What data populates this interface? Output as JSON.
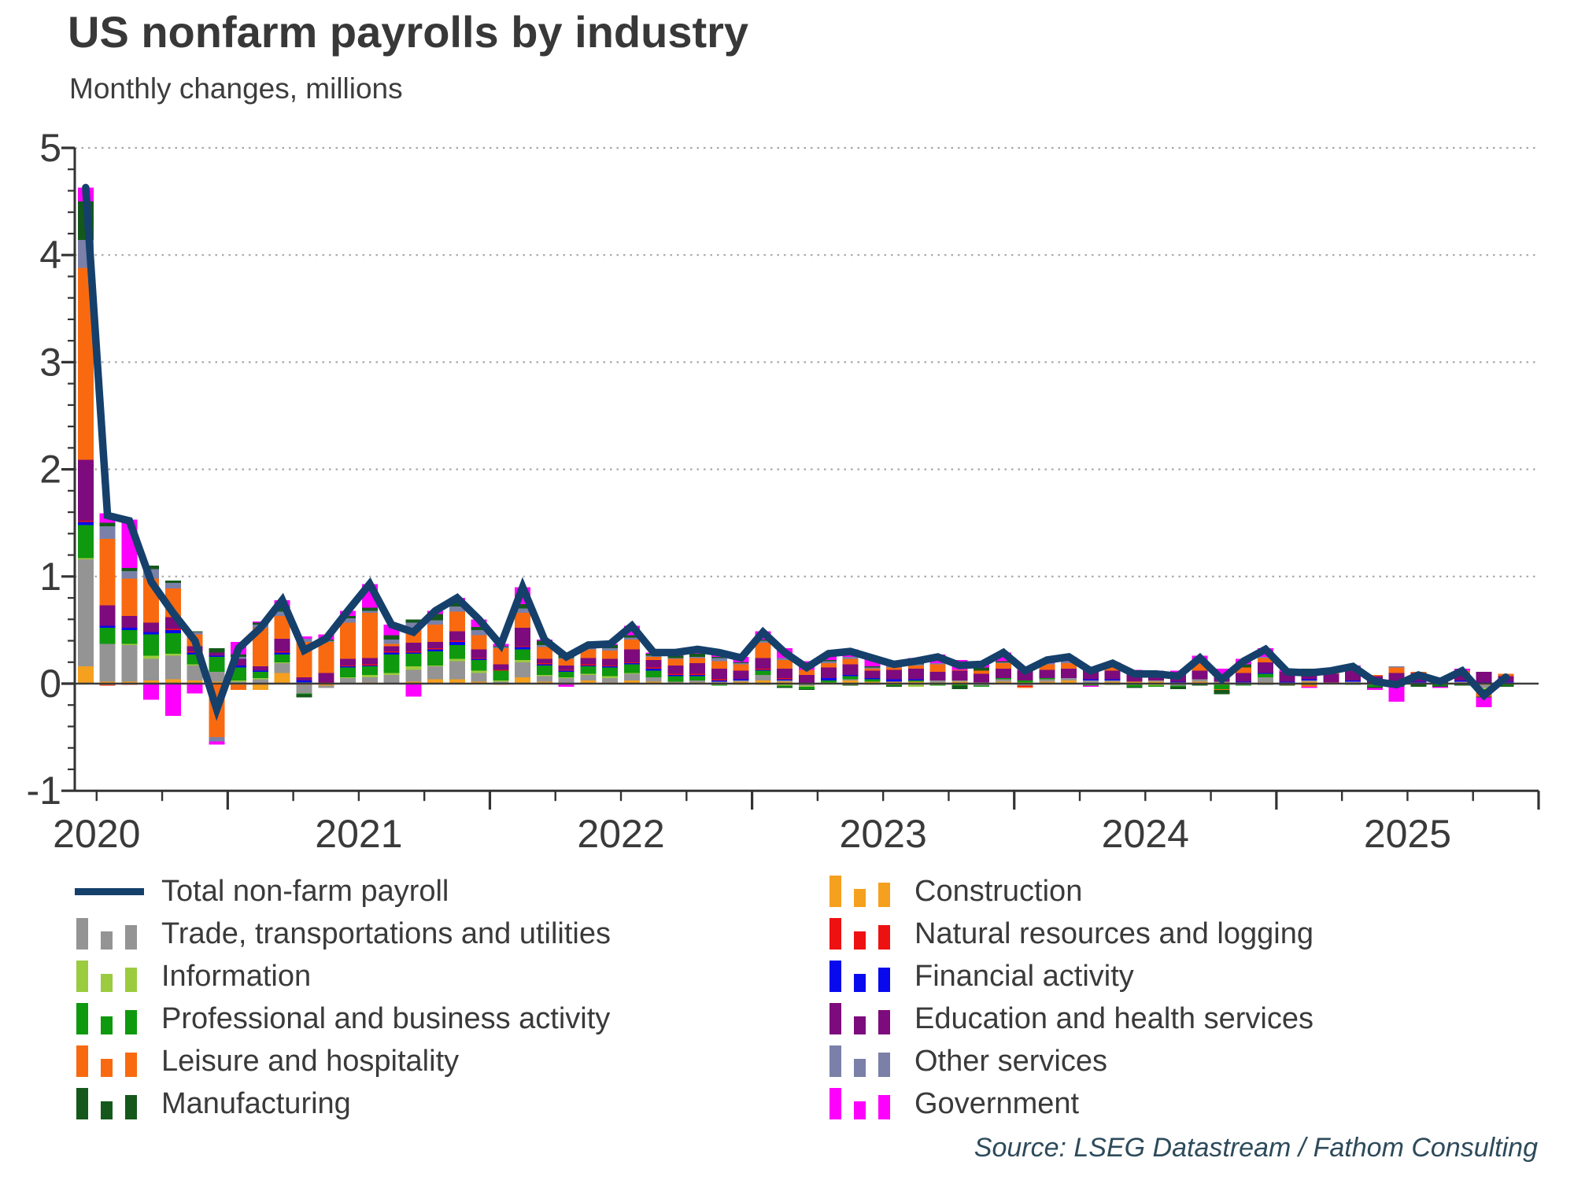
{
  "header": {
    "title": "US nonfarm payrolls by industry",
    "subtitle": "Monthly changes, millions"
  },
  "source_note": "Source: LSEG Datastream / Fathom Consulting",
  "colors": {
    "total_line": "#15406B",
    "trade": "#949494",
    "information": "#9BCB3F",
    "professional": "#0F990F",
    "leisure": "#F96A10",
    "manufacturing": "#14591B",
    "construction": "#F5A01E",
    "natural_resources": "#EE1111",
    "financial": "#0909EE",
    "education": "#7D0B7D",
    "other_services": "#7A80A8",
    "government": "#FD00FE",
    "axis": "#333333",
    "zero_line": "#3c3c3c",
    "gridline": "#a8a8a8",
    "text": "#3a3a3a"
  },
  "legend": {
    "left": [
      {
        "key": "total_line",
        "swatch": "line",
        "label": "Total non-farm payroll"
      },
      {
        "key": "trade",
        "swatch": "bars",
        "label": "Trade, transportations and utilities"
      },
      {
        "key": "information",
        "swatch": "bars",
        "label": "Information"
      },
      {
        "key": "professional",
        "swatch": "bars",
        "label": "Professional and business activity"
      },
      {
        "key": "leisure",
        "swatch": "bars",
        "label": "Leisure and hospitality"
      },
      {
        "key": "manufacturing",
        "swatch": "bars",
        "label": "Manufacturing"
      }
    ],
    "right": [
      {
        "key": "construction",
        "swatch": "bars",
        "label": "Construction"
      },
      {
        "key": "natural_resources",
        "swatch": "bars",
        "label": "Natural resources and logging"
      },
      {
        "key": "financial",
        "swatch": "bars",
        "label": "Financial activity"
      },
      {
        "key": "education",
        "swatch": "bars",
        "label": "Education and health services"
      },
      {
        "key": "other_services",
        "swatch": "bars",
        "label": "Other services"
      },
      {
        "key": "government",
        "swatch": "bars",
        "label": "Government"
      }
    ]
  },
  "chart_data": {
    "type": "bar",
    "stacked": true,
    "overlay_line": "Total non-farm payroll",
    "title": "US nonfarm payrolls by industry",
    "subtitle": "Monthly changes, millions",
    "ylabel": "Monthly changes, millions",
    "ylim": [
      -1,
      5
    ],
    "ytick_labels": [
      "-1",
      "0",
      "1",
      "2",
      "3",
      "4",
      "5"
    ],
    "ytick_values": [
      -1,
      0,
      1,
      2,
      3,
      4,
      5
    ],
    "y_minor_step": 0.2,
    "grid": "dotted horizontal at integer values 1..5",
    "legend_position": "bottom",
    "x_axis_years": [
      "2020",
      "2021",
      "2022",
      "2023",
      "2024",
      "2025"
    ],
    "x_start_month": "2020-06",
    "x_end_month": "2025-11",
    "x_axis_extends_to": "2025-12",
    "months": [
      "2020-06",
      "2020-07",
      "2020-08",
      "2020-09",
      "2020-10",
      "2020-11",
      "2020-12",
      "2021-01",
      "2021-02",
      "2021-03",
      "2021-04",
      "2021-05",
      "2021-06",
      "2021-07",
      "2021-08",
      "2021-09",
      "2021-10",
      "2021-11",
      "2021-12",
      "2022-01",
      "2022-02",
      "2022-03",
      "2022-04",
      "2022-05",
      "2022-06",
      "2022-07",
      "2022-08",
      "2022-09",
      "2022-10",
      "2022-11",
      "2022-12",
      "2023-01",
      "2023-02",
      "2023-03",
      "2023-04",
      "2023-05",
      "2023-06",
      "2023-07",
      "2023-08",
      "2023-09",
      "2023-10",
      "2023-11",
      "2023-12",
      "2024-01",
      "2024-02",
      "2024-03",
      "2024-04",
      "2024-05",
      "2024-06",
      "2024-07",
      "2024-08",
      "2024-09",
      "2024-10",
      "2024-11",
      "2024-12",
      "2025-01",
      "2025-02",
      "2025-03",
      "2025-04",
      "2025-05",
      "2025-06",
      "2025-07",
      "2025-08",
      "2025-09",
      "2025-10",
      "2025-11"
    ],
    "series": [
      {
        "name": "Construction",
        "color_key": "construction",
        "values": [
          0.16,
          0.02,
          0.02,
          0.03,
          0.04,
          0.03,
          0.02,
          -0.01,
          -0.06,
          0.1,
          -0.01,
          -0.02,
          0.0,
          0.01,
          0.0,
          0.02,
          0.04,
          0.04,
          0.02,
          -0.01,
          0.06,
          0.02,
          0.0,
          0.03,
          0.01,
          0.03,
          0.02,
          0.01,
          0.01,
          0.01,
          0.02,
          0.03,
          0.02,
          0.0,
          0.01,
          0.03,
          0.02,
          0.02,
          0.02,
          0.01,
          0.02,
          0.0,
          0.02,
          0.01,
          0.02,
          0.03,
          0.0,
          0.02,
          0.02,
          0.02,
          0.01,
          0.02,
          0.01,
          0.01,
          0.01,
          0.0,
          0.02,
          0.01,
          0.01,
          0.0,
          0.01,
          0.0,
          0.0,
          0.01,
          -0.01,
          0.0
        ]
      },
      {
        "name": "Trade, transportations and utilities",
        "color_key": "trade",
        "values": [
          1.0,
          0.35,
          0.34,
          0.2,
          0.22,
          0.14,
          0.09,
          0.02,
          0.04,
          0.09,
          -0.08,
          -0.02,
          0.05,
          0.05,
          0.08,
          0.11,
          0.12,
          0.17,
          0.08,
          0.02,
          0.14,
          0.05,
          0.05,
          0.05,
          0.04,
          0.06,
          0.04,
          0.01,
          0.02,
          0.01,
          0.01,
          0.05,
          0.01,
          -0.02,
          0.0,
          0.01,
          -0.01,
          0.0,
          -0.01,
          0.02,
          0.01,
          -0.02,
          0.02,
          -0.02,
          0.02,
          0.02,
          0.03,
          0.01,
          -0.01,
          0.01,
          -0.02,
          0.02,
          0.01,
          -0.01,
          0.05,
          0.01,
          0.01,
          0.0,
          0.01,
          -0.01,
          0.01,
          0.01,
          0.0,
          0.01,
          -0.03,
          0.01
        ]
      },
      {
        "name": "Information",
        "color_key": "information",
        "values": [
          0.01,
          -0.01,
          0.01,
          0.03,
          0.02,
          0.01,
          0.0,
          0.01,
          0.01,
          0.01,
          0.01,
          0.0,
          0.01,
          0.02,
          0.02,
          0.03,
          0.01,
          0.02,
          0.02,
          0.01,
          0.02,
          0.01,
          0.01,
          0.01,
          0.02,
          0.01,
          0.0,
          0.0,
          0.0,
          -0.01,
          -0.01,
          -0.01,
          -0.02,
          -0.01,
          0.0,
          -0.01,
          0.0,
          -0.01,
          -0.02,
          -0.01,
          -0.01,
          0.01,
          0.0,
          0.0,
          0.0,
          0.0,
          -0.01,
          0.0,
          0.0,
          -0.02,
          0.0,
          0.0,
          -0.01,
          0.0,
          0.0,
          0.0,
          0.0,
          0.0,
          0.0,
          0.0,
          0.0,
          0.0,
          0.0,
          0.0,
          -0.01,
          0.0
        ]
      },
      {
        "name": "Professional and business activity",
        "color_key": "professional",
        "values": [
          0.31,
          0.15,
          0.13,
          0.2,
          0.19,
          0.09,
          0.14,
          0.12,
          0.06,
          0.07,
          -0.01,
          0.0,
          0.09,
          0.08,
          0.17,
          0.12,
          0.13,
          0.13,
          0.1,
          0.09,
          0.1,
          0.09,
          0.05,
          0.07,
          0.08,
          0.08,
          0.06,
          0.05,
          0.04,
          -0.01,
          0.0,
          0.04,
          -0.01,
          -0.02,
          0.02,
          0.03,
          0.02,
          -0.01,
          0.01,
          -0.01,
          -0.01,
          -0.01,
          0.01,
          0.02,
          0.01,
          0.0,
          -0.01,
          -0.01,
          -0.02,
          -0.01,
          -0.01,
          -0.01,
          -0.04,
          -0.01,
          0.03,
          0.0,
          -0.01,
          0.0,
          -0.01,
          -0.02,
          -0.02,
          -0.01,
          -0.02,
          -0.01,
          -0.03,
          -0.02
        ]
      },
      {
        "name": "Financial activity",
        "color_key": "financial",
        "values": [
          0.03,
          0.02,
          0.02,
          0.02,
          0.03,
          0.02,
          0.01,
          0.02,
          0.01,
          0.02,
          0.02,
          0.0,
          0.01,
          0.01,
          0.02,
          0.01,
          0.02,
          0.03,
          0.01,
          0.0,
          0.02,
          0.01,
          0.01,
          0.01,
          0.01,
          0.01,
          0.02,
          0.01,
          0.01,
          0.01,
          0.01,
          0.01,
          0.01,
          0.0,
          0.02,
          0.01,
          0.01,
          0.02,
          0.01,
          0.0,
          0.0,
          0.0,
          0.0,
          0.0,
          0.0,
          0.0,
          0.01,
          0.01,
          0.0,
          0.0,
          0.01,
          0.0,
          0.0,
          0.01,
          0.01,
          0.01,
          0.01,
          0.0,
          0.01,
          0.0,
          0.0,
          0.01,
          0.0,
          0.01,
          0.01,
          0.01
        ]
      },
      {
        "name": "Natural resources and logging",
        "color_key": "natural_resources",
        "values": [
          0.01,
          -0.01,
          -0.01,
          0.0,
          0.01,
          0.01,
          0.0,
          0.0,
          0.0,
          0.01,
          0.0,
          0.01,
          0.01,
          0.01,
          0.01,
          0.01,
          0.01,
          0.01,
          0.01,
          0.01,
          0.01,
          0.01,
          0.01,
          0.01,
          0.01,
          0.01,
          0.01,
          0.01,
          0.01,
          0.01,
          0.0,
          0.01,
          0.01,
          0.0,
          0.0,
          0.0,
          0.0,
          0.0,
          0.0,
          0.0,
          0.0,
          0.0,
          0.0,
          -0.01,
          0.0,
          0.0,
          0.0,
          0.0,
          0.0,
          0.0,
          0.0,
          0.0,
          0.0,
          0.0,
          0.0,
          0.0,
          0.0,
          0.0,
          0.0,
          0.0,
          0.0,
          0.0,
          0.0,
          0.0,
          0.0,
          0.0
        ]
      },
      {
        "name": "Education and health services",
        "color_key": "education",
        "values": [
          0.57,
          0.19,
          0.11,
          0.09,
          0.11,
          0.05,
          0.03,
          0.06,
          0.04,
          0.12,
          0.03,
          0.09,
          0.06,
          0.06,
          0.05,
          0.08,
          0.06,
          0.09,
          0.08,
          0.05,
          0.17,
          0.04,
          0.04,
          0.06,
          0.06,
          0.12,
          0.07,
          0.08,
          0.1,
          0.1,
          0.08,
          0.1,
          0.09,
          0.08,
          0.1,
          0.1,
          0.07,
          0.09,
          0.1,
          0.08,
          0.09,
          0.08,
          0.09,
          0.09,
          0.08,
          0.09,
          0.09,
          0.08,
          0.08,
          0.06,
          0.07,
          0.08,
          0.06,
          0.08,
          0.1,
          0.09,
          0.08,
          0.08,
          0.09,
          0.07,
          0.08,
          0.08,
          0.05,
          0.06,
          0.1,
          0.05
        ]
      },
      {
        "name": "Leisure and hospitality",
        "color_key": "leisure",
        "values": [
          1.79,
          0.62,
          0.35,
          0.41,
          0.27,
          0.11,
          -0.5,
          -0.05,
          0.36,
          0.21,
          0.33,
          0.29,
          0.34,
          0.42,
          0.02,
          0.12,
          0.16,
          0.18,
          0.13,
          0.15,
          0.14,
          0.11,
          0.06,
          0.08,
          0.08,
          0.09,
          0.03,
          0.06,
          0.05,
          0.07,
          0.06,
          0.14,
          0.08,
          0.05,
          0.04,
          0.05,
          0.02,
          0.02,
          0.03,
          0.07,
          0.01,
          0.03,
          0.05,
          -0.01,
          0.05,
          0.05,
          0.01,
          0.04,
          0.01,
          0.02,
          0.0,
          0.07,
          -0.01,
          0.05,
          0.04,
          -0.01,
          -0.02,
          0.02,
          0.03,
          0.01,
          0.05,
          0.01,
          0.01,
          0.03,
          -0.04,
          0.02
        ]
      },
      {
        "name": "Other services",
        "color_key": "other_services",
        "values": [
          0.26,
          0.12,
          0.07,
          0.09,
          0.05,
          0.02,
          -0.04,
          0.02,
          0.03,
          0.04,
          0.03,
          0.01,
          0.04,
          0.02,
          0.04,
          0.07,
          0.04,
          0.05,
          0.05,
          0.01,
          0.04,
          0.02,
          0.01,
          0.02,
          0.02,
          0.02,
          0.01,
          0.01,
          0.01,
          0.03,
          0.01,
          0.02,
          0.02,
          0.0,
          0.02,
          0.02,
          0.01,
          0.01,
          0.01,
          0.01,
          0.0,
          0.0,
          0.01,
          0.0,
          0.01,
          0.02,
          0.0,
          0.01,
          0.0,
          0.0,
          0.01,
          0.02,
          0.01,
          0.0,
          0.01,
          0.0,
          0.01,
          0.0,
          0.01,
          0.0,
          0.01,
          0.0,
          0.0,
          0.0,
          0.0,
          0.0
        ]
      },
      {
        "name": "Manufacturing",
        "color_key": "manufacturing",
        "values": [
          0.36,
          0.03,
          0.03,
          0.03,
          0.02,
          0.01,
          0.04,
          0.02,
          0.02,
          0.05,
          -0.03,
          0.01,
          0.02,
          0.03,
          0.04,
          0.03,
          0.06,
          0.04,
          0.03,
          0.01,
          0.04,
          0.04,
          0.04,
          0.02,
          0.03,
          0.02,
          0.02,
          0.02,
          0.03,
          0.01,
          0.01,
          0.01,
          -0.01,
          -0.01,
          0.01,
          -0.01,
          0.01,
          -0.01,
          0.01,
          0.0,
          -0.03,
          0.03,
          0.01,
          0.0,
          0.0,
          0.0,
          0.01,
          0.0,
          -0.01,
          0.0,
          -0.02,
          -0.01,
          -0.04,
          0.03,
          -0.01,
          -0.01,
          0.01,
          0.0,
          0.0,
          -0.01,
          -0.01,
          -0.02,
          -0.01,
          -0.01,
          -0.01,
          -0.01
        ]
      },
      {
        "name": "Government",
        "color_key": "government",
        "values": [
          0.13,
          0.09,
          0.45,
          -0.15,
          -0.3,
          -0.09,
          -0.03,
          0.12,
          0.01,
          0.06,
          0.02,
          0.05,
          0.05,
          0.22,
          0.1,
          -0.12,
          0.03,
          0.04,
          0.07,
          0.02,
          0.16,
          0.01,
          -0.03,
          0.0,
          0.01,
          0.09,
          0.01,
          0.03,
          0.04,
          0.06,
          0.05,
          0.08,
          0.09,
          0.08,
          0.06,
          0.07,
          0.09,
          0.05,
          0.05,
          0.08,
          0.09,
          0.06,
          0.08,
          0.04,
          0.03,
          0.04,
          -0.01,
          0.03,
          0.02,
          0.01,
          0.02,
          0.05,
          0.05,
          0.05,
          0.08,
          0.02,
          -0.01,
          0.01,
          0.01,
          -0.02,
          -0.14,
          0.0,
          -0.01,
          0.02,
          -0.09,
          0.0
        ]
      }
    ],
    "line_series": {
      "name": "Total non-farm payroll",
      "color_key": "total_line",
      "values": [
        4.63,
        1.57,
        1.52,
        0.95,
        0.66,
        0.4,
        -0.24,
        0.33,
        0.52,
        0.78,
        0.31,
        0.42,
        0.68,
        0.93,
        0.55,
        0.48,
        0.68,
        0.8,
        0.6,
        0.36,
        0.9,
        0.41,
        0.25,
        0.36,
        0.37,
        0.54,
        0.29,
        0.29,
        0.32,
        0.29,
        0.24,
        0.48,
        0.29,
        0.15,
        0.28,
        0.3,
        0.24,
        0.18,
        0.21,
        0.25,
        0.17,
        0.18,
        0.29,
        0.12,
        0.22,
        0.25,
        0.12,
        0.19,
        0.09,
        0.09,
        0.07,
        0.24,
        0.04,
        0.21,
        0.32,
        0.11,
        0.1,
        0.12,
        0.16,
        0.02,
        -0.01,
        0.08,
        0.02,
        0.12,
        -0.11,
        0.06
      ]
    }
  }
}
